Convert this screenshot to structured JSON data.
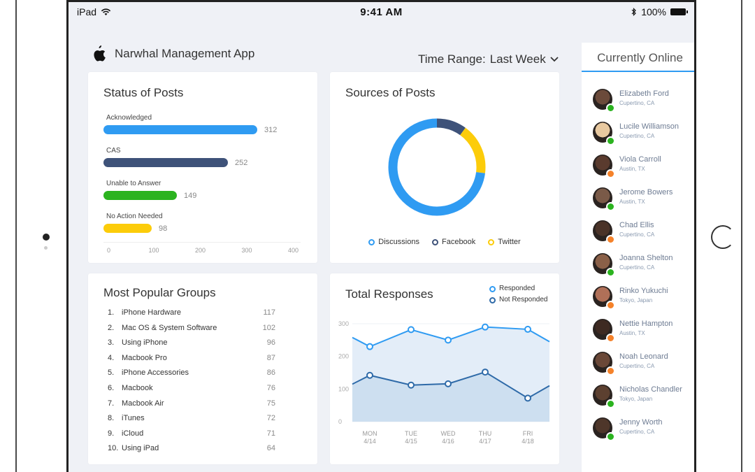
{
  "status_bar": {
    "device": "iPad",
    "time": "9:41 AM",
    "battery": "100%"
  },
  "app": {
    "title": "Narwhal Management App"
  },
  "time_range": {
    "label": "Time Range:",
    "value": "Last Week"
  },
  "sidebar": {
    "title": "Currently Online",
    "users": [
      {
        "name": "Elizabeth Ford",
        "location": "Cupertino, CA",
        "status": "green"
      },
      {
        "name": "Lucile Williamson",
        "location": "Cupertino, CA",
        "status": "green"
      },
      {
        "name": "Viola Carroll",
        "location": "Austin, TX",
        "status": "orange"
      },
      {
        "name": "Jerome Bowers",
        "location": "Austin, TX",
        "status": "green"
      },
      {
        "name": "Chad Ellis",
        "location": "Cupertino, CA",
        "status": "orange"
      },
      {
        "name": "Joanna Shelton",
        "location": "Cupertino, CA",
        "status": "green"
      },
      {
        "name": "Rinko Yukuchi",
        "location": "Tokyo, Japan",
        "status": "orange"
      },
      {
        "name": "Nettie Hampton",
        "location": "Austin, TX",
        "status": "orange"
      },
      {
        "name": "Noah Leonard",
        "location": "Cupertino, CA",
        "status": "orange"
      },
      {
        "name": "Nicholas Chandler",
        "location": "Tokyo, Japan",
        "status": "green"
      },
      {
        "name": "Jenny Worth",
        "location": "Cupertino, CA",
        "status": "green"
      }
    ]
  },
  "status_of_posts": {
    "title": "Status of Posts",
    "bars": [
      {
        "label": "Acknowledged",
        "value": 312,
        "color": "#2f9bf2"
      },
      {
        "label": "CAS",
        "value": 252,
        "color": "#3e5279"
      },
      {
        "label": "Unable to Answer",
        "value": 149,
        "color": "#2bb31f"
      },
      {
        "label": "No Action Needed",
        "value": 98,
        "color": "#fccc0a"
      }
    ],
    "axis": [
      "0",
      "100",
      "200",
      "300",
      "400"
    ],
    "max": 400
  },
  "sources_of_posts": {
    "title": "Sources of Posts",
    "legend": [
      {
        "label": "Discussions",
        "color": "#2f9bf2"
      },
      {
        "label": "Facebook",
        "color": "#3e5279"
      },
      {
        "label": "Twitter",
        "color": "#fccc0a"
      }
    ]
  },
  "popular_groups": {
    "title": "Most Popular Groups",
    "rows": [
      {
        "rank": "1.",
        "name": "iPhone Hardware",
        "count": "117"
      },
      {
        "rank": "2.",
        "name": "Mac OS & System Software",
        "count": "102"
      },
      {
        "rank": "3.",
        "name": "Using iPhone",
        "count": "96"
      },
      {
        "rank": "4.",
        "name": "Macbook Pro",
        "count": "87"
      },
      {
        "rank": "5.",
        "name": "iPhone Accessories",
        "count": "86"
      },
      {
        "rank": "6.",
        "name": "Macbook",
        "count": "76"
      },
      {
        "rank": "7.",
        "name": "Macbook Air",
        "count": "75"
      },
      {
        "rank": "8.",
        "name": "iTunes",
        "count": "72"
      },
      {
        "rank": "9.",
        "name": "iCloud",
        "count": "71"
      },
      {
        "rank": "10.",
        "name": "Using iPad",
        "count": "64"
      }
    ]
  },
  "total_responses": {
    "title": "Total Responses",
    "legend": [
      {
        "label": "Responded",
        "color": "#2f9bf2"
      },
      {
        "label": "Not Responded",
        "color": "#2e6aa8"
      }
    ]
  },
  "chart_data": [
    {
      "type": "bar",
      "title": "Status of Posts",
      "categories": [
        "Acknowledged",
        "CAS",
        "Unable to Answer",
        "No Action Needed"
      ],
      "values": [
        312,
        252,
        149,
        98
      ],
      "xlim": [
        0,
        400
      ]
    },
    {
      "type": "pie",
      "title": "Sources of Posts",
      "categories": [
        "Discussions",
        "Facebook",
        "Twitter"
      ],
      "values": [
        73,
        10,
        17
      ]
    },
    {
      "type": "line",
      "title": "Total Responses",
      "categories": [
        "MON 4/14",
        "TUE 4/15",
        "WED 4/16",
        "THU 4/17",
        "FRI 4/18"
      ],
      "series": [
        {
          "name": "Responded",
          "values": [
            230,
            282,
            250,
            290,
            283
          ]
        },
        {
          "name": "Not Responded",
          "values": [
            142,
            112,
            116,
            152,
            72
          ]
        }
      ],
      "ylim": [
        0,
        300
      ],
      "yticks": [
        "300",
        "200",
        "100",
        "0"
      ]
    }
  ]
}
